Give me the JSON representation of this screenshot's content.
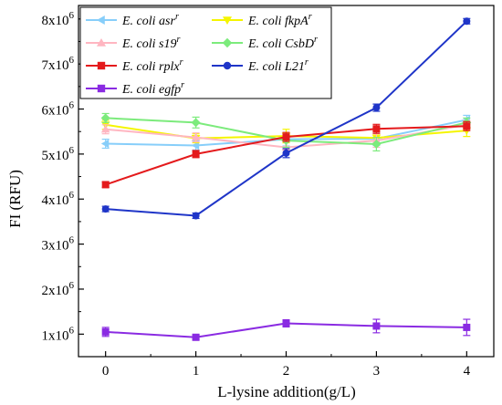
{
  "chart_data": {
    "type": "line",
    "xlabel": "L-lysine addition(g/L)",
    "ylabel": "FI (RFU)",
    "x": [
      0,
      1,
      2,
      3,
      4
    ],
    "xlim": [
      -0.3,
      4.3
    ],
    "ylim": [
      500000,
      8300000
    ],
    "x_ticks": [
      0,
      1,
      2,
      3,
      4
    ],
    "x_tick_labels": [
      "0",
      "1",
      "2",
      "3",
      "4"
    ],
    "y_ticks": [
      1000000,
      2000000,
      3000000,
      4000000,
      5000000,
      6000000,
      7000000,
      8000000
    ],
    "y_tick_mantissas": [
      "1x10",
      "2x10",
      "3x10",
      "4x10",
      "5x10",
      "6x10",
      "7x10",
      "8x10"
    ],
    "y_tick_exponent": "6",
    "grid": false,
    "legend_position": "top-left inside",
    "series": [
      {
        "name": "E. coli asr",
        "name_sup": "r",
        "color": "#87CEFA",
        "marker": "triangle-left",
        "values": [
          5230000,
          5190000,
          5330000,
          5340000,
          5760000
        ],
        "errors": [
          100000,
          100000,
          150000,
          150000,
          100000
        ]
      },
      {
        "name": "E. coli fkpA",
        "name_sup": "r",
        "color": "#F5F500",
        "marker": "triangle-down",
        "values": [
          5650000,
          5350000,
          5400000,
          5360000,
          5520000
        ],
        "errors": [
          100000,
          100000,
          150000,
          150000,
          130000
        ]
      },
      {
        "name": "E. coli s19",
        "name_sup": "r",
        "color": "#FFB6C1",
        "marker": "triangle-up",
        "values": [
          5550000,
          5370000,
          5150000,
          5300000,
          5650000
        ],
        "errors": [
          100000,
          100000,
          150000,
          150000,
          100000
        ]
      },
      {
        "name": "E. coli CsbD",
        "name_sup": "r",
        "color": "#7CEB7C",
        "marker": "diamond",
        "values": [
          5800000,
          5700000,
          5300000,
          5220000,
          5700000
        ],
        "errors": [
          100000,
          120000,
          150000,
          150000,
          100000
        ]
      },
      {
        "name": "E. coli rplx",
        "name_sup": "r",
        "color": "#E41A1C",
        "marker": "square",
        "values": [
          4320000,
          5000000,
          5380000,
          5560000,
          5620000
        ],
        "errors": [
          60000,
          80000,
          100000,
          100000,
          100000
        ]
      },
      {
        "name": "E. coli L21",
        "name_sup": "r",
        "color": "#1F35C8",
        "marker": "circle",
        "values": [
          3780000,
          3630000,
          5020000,
          6030000,
          7950000
        ],
        "errors": [
          60000,
          60000,
          100000,
          80000,
          60000
        ]
      },
      {
        "name": "E. coli egfp",
        "name_sup": "r",
        "color": "#8A2BE2",
        "marker": "square",
        "values": [
          1050000,
          930000,
          1240000,
          1180000,
          1150000
        ],
        "errors": [
          100000,
          50000,
          80000,
          150000,
          180000
        ]
      }
    ]
  }
}
